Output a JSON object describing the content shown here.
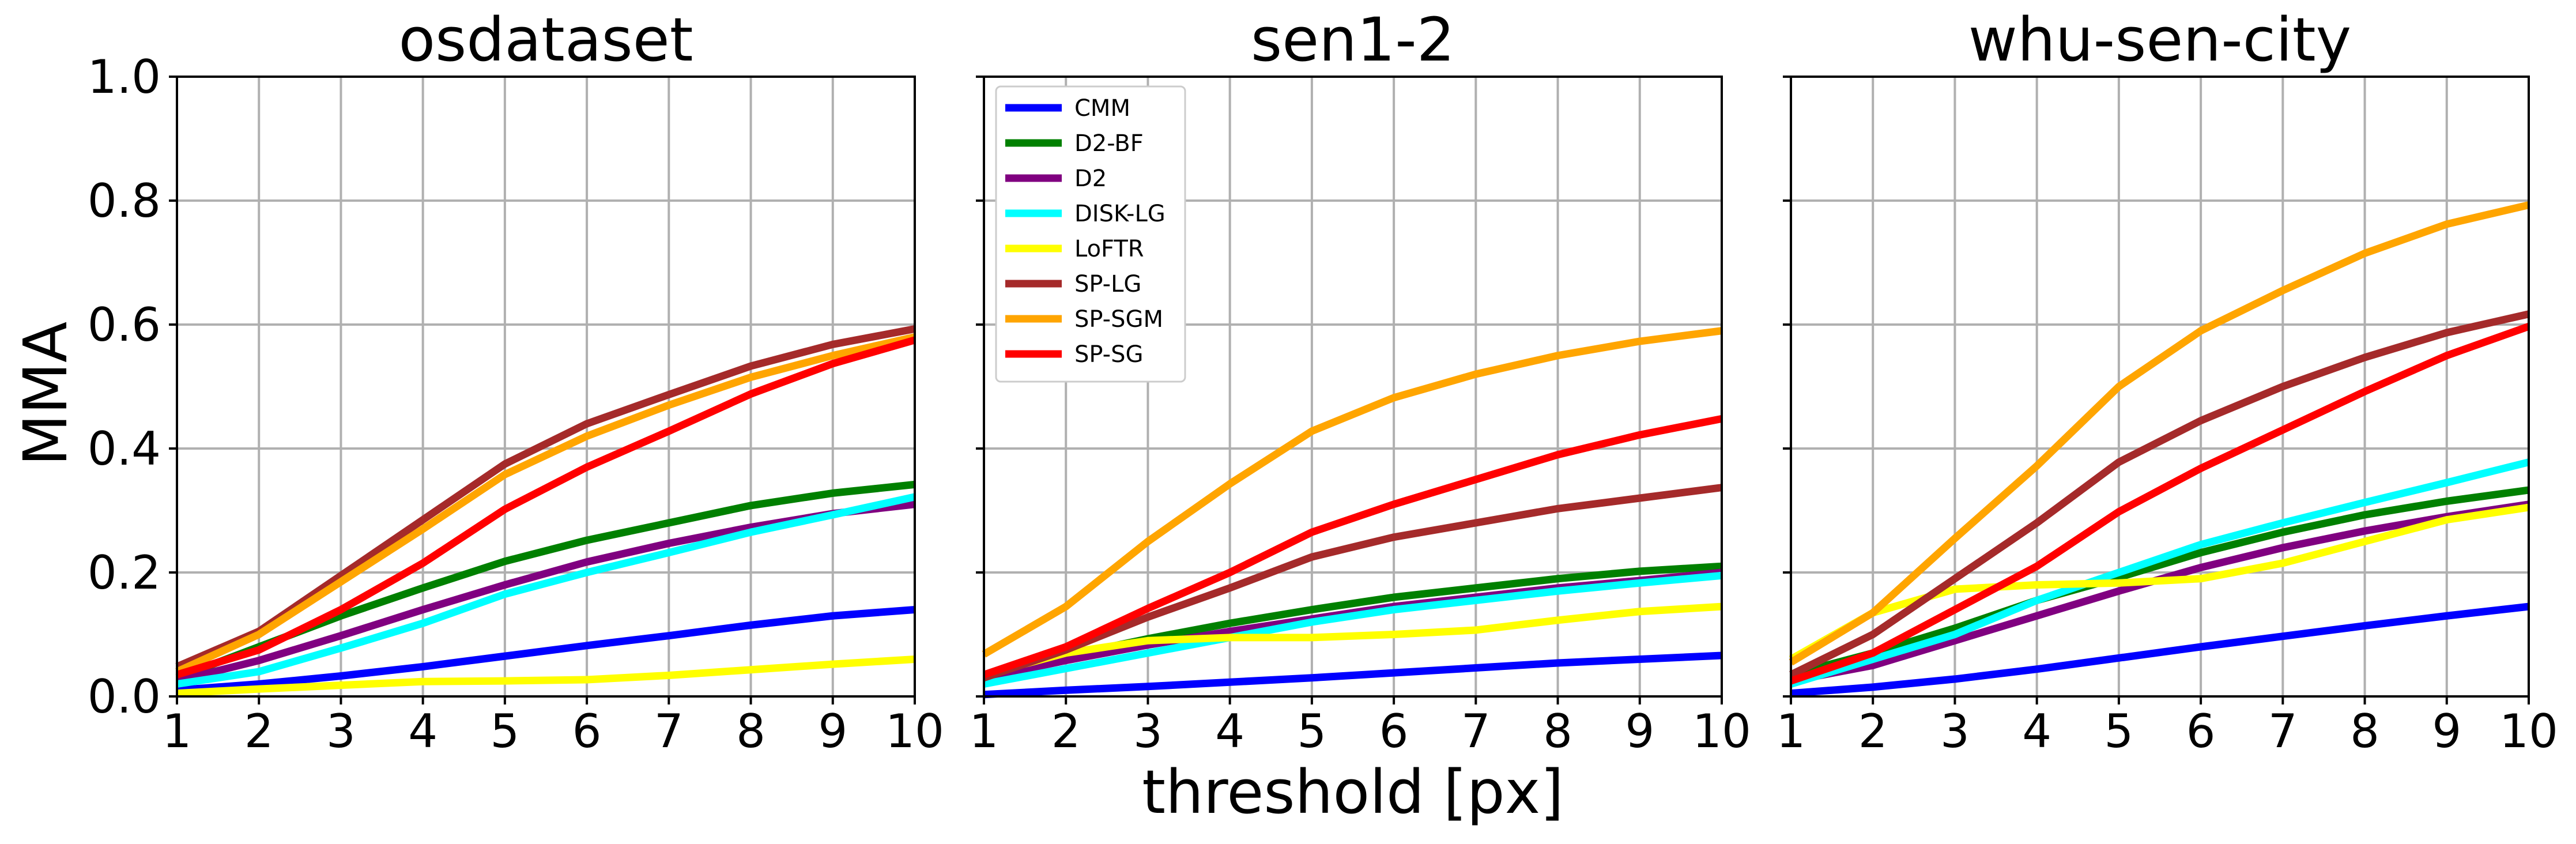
{
  "chart_data": {
    "type": "line",
    "layout": "1x3 subplots, shared y-axis",
    "xlabel": "threshold [px]",
    "ylabel": "MMA",
    "xlim": [
      1,
      10
    ],
    "ylim": [
      0,
      1
    ],
    "x_ticks": [
      1,
      2,
      3,
      4,
      5,
      6,
      7,
      8,
      9,
      10
    ],
    "y_ticks": [
      "0.0",
      "0.2",
      "0.4",
      "0.6",
      "0.8",
      "1.0"
    ],
    "grid": true,
    "legend_placement": "upper-left of middle panel",
    "x": [
      1,
      2,
      3,
      4,
      5,
      6,
      7,
      8,
      9,
      10
    ],
    "series_styles": [
      {
        "name": "CMM",
        "color": "#0000ff"
      },
      {
        "name": "D2-BF",
        "color": "#008000"
      },
      {
        "name": "D2",
        "color": "#800080"
      },
      {
        "name": "DISK-LG",
        "color": "#00ffff"
      },
      {
        "name": "LoFTR",
        "color": "#ffff00"
      },
      {
        "name": "SP-LG",
        "color": "#a52a2a"
      },
      {
        "name": "SP-SGM",
        "color": "#ffa500"
      },
      {
        "name": "SP-SG",
        "color": "#ff0000"
      }
    ],
    "panels": [
      {
        "title": "osdataset",
        "series": [
          {
            "name": "CMM",
            "values": [
              0.01,
              0.02,
              0.033,
              0.048,
              0.065,
              0.082,
              0.098,
              0.115,
              0.13,
              0.14
            ]
          },
          {
            "name": "D2-BF",
            "values": [
              0.03,
              0.08,
              0.13,
              0.175,
              0.218,
              0.252,
              0.28,
              0.308,
              0.328,
              0.342
            ]
          },
          {
            "name": "D2",
            "values": [
              0.025,
              0.058,
              0.098,
              0.14,
              0.18,
              0.217,
              0.247,
              0.273,
              0.295,
              0.31
            ]
          },
          {
            "name": "DISK-LG",
            "values": [
              0.02,
              0.04,
              0.078,
              0.118,
              0.165,
              0.2,
              0.232,
              0.265,
              0.293,
              0.322
            ]
          },
          {
            "name": "LoFTR",
            "values": [
              0.005,
              0.012,
              0.018,
              0.024,
              0.025,
              0.027,
              0.034,
              0.043,
              0.052,
              0.06
            ]
          },
          {
            "name": "SP-LG",
            "values": [
              0.048,
              0.105,
              0.195,
              0.285,
              0.375,
              0.44,
              0.487,
              0.533,
              0.568,
              0.593
            ]
          },
          {
            "name": "SP-SGM",
            "values": [
              0.04,
              0.1,
              0.185,
              0.27,
              0.358,
              0.42,
              0.47,
              0.515,
              0.55,
              0.58
            ]
          },
          {
            "name": "SP-SG",
            "values": [
              0.035,
              0.075,
              0.14,
              0.215,
              0.302,
              0.37,
              0.428,
              0.488,
              0.537,
              0.575
            ]
          }
        ]
      },
      {
        "title": "sen1-2",
        "series": [
          {
            "name": "CMM",
            "values": [
              0.003,
              0.01,
              0.016,
              0.023,
              0.03,
              0.038,
              0.046,
              0.054,
              0.06,
              0.066
            ]
          },
          {
            "name": "D2-BF",
            "values": [
              0.035,
              0.065,
              0.093,
              0.118,
              0.14,
              0.16,
              0.175,
              0.19,
              0.202,
              0.21
            ]
          },
          {
            "name": "D2",
            "values": [
              0.03,
              0.058,
              0.083,
              0.105,
              0.125,
              0.145,
              0.16,
              0.175,
              0.187,
              0.2
            ]
          },
          {
            "name": "DISK-LG",
            "values": [
              0.02,
              0.045,
              0.07,
              0.095,
              0.12,
              0.14,
              0.155,
              0.17,
              0.183,
              0.195
            ]
          },
          {
            "name": "LoFTR",
            "values": [
              0.035,
              0.07,
              0.09,
              0.095,
              0.095,
              0.1,
              0.107,
              0.123,
              0.137,
              0.145
            ]
          },
          {
            "name": "SP-LG",
            "values": [
              0.03,
              0.075,
              0.128,
              0.175,
              0.225,
              0.257,
              0.28,
              0.303,
              0.32,
              0.337
            ]
          },
          {
            "name": "SP-SGM",
            "values": [
              0.068,
              0.145,
              0.25,
              0.343,
              0.428,
              0.482,
              0.52,
              0.55,
              0.573,
              0.59
            ]
          },
          {
            "name": "SP-SG",
            "values": [
              0.035,
              0.08,
              0.142,
              0.2,
              0.265,
              0.31,
              0.35,
              0.39,
              0.422,
              0.448
            ]
          }
        ]
      },
      {
        "title": "whu-sen-city",
        "series": [
          {
            "name": "CMM",
            "values": [
              0.005,
              0.015,
              0.028,
              0.044,
              0.062,
              0.08,
              0.097,
              0.114,
              0.13,
              0.145
            ]
          },
          {
            "name": "D2-BF",
            "values": [
              0.035,
              0.07,
              0.11,
              0.155,
              0.192,
              0.232,
              0.265,
              0.293,
              0.315,
              0.333
            ]
          },
          {
            "name": "D2",
            "values": [
              0.025,
              0.05,
              0.09,
              0.13,
              0.17,
              0.208,
              0.24,
              0.267,
              0.29,
              0.31
            ]
          },
          {
            "name": "DISK-LG",
            "values": [
              0.02,
              0.06,
              0.1,
              0.155,
              0.2,
              0.245,
              0.28,
              0.313,
              0.345,
              0.378
            ]
          },
          {
            "name": "LoFTR",
            "values": [
              0.06,
              0.135,
              0.173,
              0.18,
              0.183,
              0.19,
              0.215,
              0.25,
              0.285,
              0.305
            ]
          },
          {
            "name": "SP-LG",
            "values": [
              0.035,
              0.1,
              0.19,
              0.28,
              0.378,
              0.445,
              0.5,
              0.547,
              0.587,
              0.617
            ]
          },
          {
            "name": "SP-SGM",
            "values": [
              0.055,
              0.135,
              0.255,
              0.372,
              0.5,
              0.59,
              0.655,
              0.715,
              0.762,
              0.793
            ]
          },
          {
            "name": "SP-SG",
            "values": [
              0.025,
              0.07,
              0.14,
              0.21,
              0.298,
              0.368,
              0.43,
              0.492,
              0.55,
              0.597
            ]
          }
        ]
      }
    ]
  }
}
